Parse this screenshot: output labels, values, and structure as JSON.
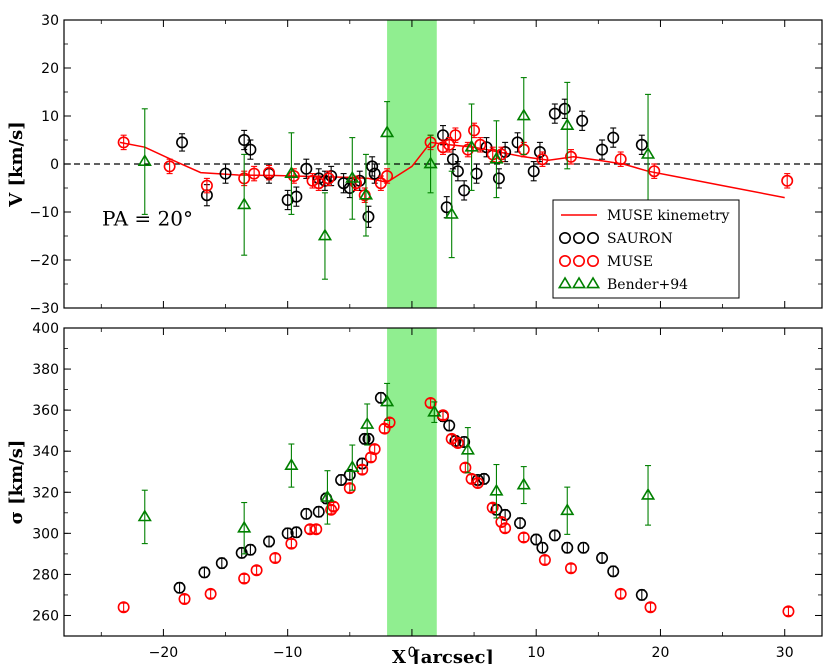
{
  "colors": {
    "sauron": "#000000",
    "muse": "#ff0000",
    "bender": "#008000",
    "model": "#ff0000",
    "band": "#90ee90"
  },
  "chart_data": {
    "type": "scatter",
    "shared_x": {
      "xlabel": "X [arcsec]",
      "xlim": [
        -28,
        33
      ],
      "xticks": [
        -20,
        -10,
        0,
        10,
        20,
        30
      ],
      "xtick_labels": [
        "−20",
        "−10",
        "0",
        "10",
        "20",
        "30"
      ]
    },
    "shaded_band": [
      -2,
      2
    ],
    "legend": {
      "placement": "upper-right of lower half, top panel",
      "entries": [
        {
          "id": "model",
          "label": "MUSE kinemetry",
          "marker": "line"
        },
        {
          "id": "sauron",
          "label": "SAURON",
          "marker": "circle"
        },
        {
          "id": "muse",
          "label": "MUSE",
          "marker": "circle"
        },
        {
          "id": "bender",
          "label": "Bender+94",
          "marker": "triangle"
        }
      ]
    },
    "panels": [
      {
        "id": "velocity",
        "ylabel": "V [km/s]",
        "ylim": [
          -30,
          30
        ],
        "yticks": [
          -30,
          -20,
          -10,
          0,
          10,
          20,
          30
        ],
        "ytick_labels": [
          "−30",
          "−20",
          "−10",
          "0",
          "10",
          "20",
          "30"
        ],
        "annotation": "PA = 20°",
        "zero_line": true,
        "model": [
          [
            -23.5,
            4.5
          ],
          [
            -21.5,
            3.5
          ],
          [
            -19,
            0.5
          ],
          [
            -17,
            -1.8
          ],
          [
            -14,
            -2.3
          ],
          [
            -11,
            -2.4
          ],
          [
            -8,
            -2.6
          ],
          [
            -5,
            -2.8
          ],
          [
            -3.5,
            -3.0
          ],
          [
            -2,
            -3.8
          ],
          [
            0,
            -0.5
          ],
          [
            1.5,
            4.5
          ],
          [
            3,
            4.0
          ],
          [
            5,
            3.5
          ],
          [
            7,
            2.5
          ],
          [
            9,
            1.5
          ],
          [
            11,
            0.8
          ],
          [
            13,
            1.5
          ],
          [
            15,
            0.8
          ],
          [
            17,
            0
          ],
          [
            19,
            -1.5
          ],
          [
            21,
            -2.5
          ],
          [
            25,
            -4.5
          ],
          [
            30,
            -7.0
          ]
        ],
        "series": [
          {
            "id": "sauron",
            "name": "SAURON",
            "points": [
              [
                -18.5,
                4.5,
                1.8
              ],
              [
                -16.5,
                -6.5,
                2.2
              ],
              [
                -15,
                -2.0,
                2.0
              ],
              [
                -13.5,
                5.0,
                2.0
              ],
              [
                -13,
                3.0,
                2.0
              ],
              [
                -11.5,
                -2.0,
                2.0
              ],
              [
                -10,
                -7.5,
                2.0
              ],
              [
                -9.3,
                -6.8,
                2.0
              ],
              [
                -8.5,
                -1.0,
                2.0
              ],
              [
                -7.5,
                -3.0,
                2.0
              ],
              [
                -7.0,
                -3.5,
                2.0
              ],
              [
                -6.5,
                -2.5,
                2.0
              ],
              [
                -5.5,
                -4.0,
                2.0
              ],
              [
                -5,
                -5.0,
                2.0
              ],
              [
                -4.2,
                -3.5,
                2.0
              ],
              [
                -3.5,
                -11.0,
                2.2
              ],
              [
                -3.2,
                -0.5,
                2.0
              ],
              [
                -3.0,
                -2.0,
                2.0
              ],
              [
                2.5,
                6.0,
                2.0
              ],
              [
                2.8,
                -9.0,
                2.2
              ],
              [
                3.3,
                1.0,
                2.0
              ],
              [
                3.7,
                -1.5,
                2.0
              ],
              [
                4.2,
                -5.5,
                2.0
              ],
              [
                5.2,
                -2.0,
                2.0
              ],
              [
                6.0,
                3.5,
                2.0
              ],
              [
                7,
                -3.0,
                2.0
              ],
              [
                7.5,
                2.5,
                2.0
              ],
              [
                8.5,
                4.5,
                2.0
              ],
              [
                9.8,
                -1.5,
                2.0
              ],
              [
                10.3,
                2.5,
                2.0
              ],
              [
                11.5,
                10.5,
                2.0
              ],
              [
                12.3,
                11.5,
                2.0
              ],
              [
                13.7,
                9.0,
                2.0
              ],
              [
                15.3,
                3.0,
                2.0
              ],
              [
                16.2,
                5.5,
                2.0
              ],
              [
                18.5,
                4.0,
                2.0
              ]
            ]
          },
          {
            "id": "muse",
            "name": "MUSE",
            "points": [
              [
                -23.2,
                4.5,
                1.5
              ],
              [
                -19.5,
                -0.5,
                1.5
              ],
              [
                -16.5,
                -4.5,
                1.5
              ],
              [
                -13.5,
                -3.0,
                1.5
              ],
              [
                -12.7,
                -2.0,
                1.5
              ],
              [
                -11.5,
                -1.8,
                1.5
              ],
              [
                -9.5,
                -2.5,
                1.5
              ],
              [
                -8,
                -3.5,
                1.5
              ],
              [
                -7.5,
                -4.0,
                1.5
              ],
              [
                -6.7,
                -3.0,
                1.5
              ],
              [
                -4.5,
                -4.0,
                1.5
              ],
              [
                -3.8,
                -6.5,
                1.5
              ],
              [
                -2.5,
                -4.0,
                1.5
              ],
              [
                -2.0,
                -2.5,
                1.5
              ],
              [
                1.5,
                4.5,
                1.5
              ],
              [
                2.5,
                3.5,
                1.5
              ],
              [
                3.0,
                4.0,
                1.5
              ],
              [
                3.5,
                6.0,
                1.5
              ],
              [
                4.5,
                3.0,
                1.5
              ],
              [
                5.0,
                7.0,
                1.5
              ],
              [
                5.5,
                4.0,
                1.5
              ],
              [
                6.5,
                2.0,
                1.5
              ],
              [
                7.2,
                2.0,
                1.5
              ],
              [
                9.0,
                3.0,
                1.5
              ],
              [
                10.5,
                1.0,
                1.5
              ],
              [
                12.8,
                1.5,
                1.5
              ],
              [
                16.8,
                1.0,
                1.5
              ],
              [
                19.5,
                -1.5,
                1.5
              ],
              [
                30.2,
                -3.5,
                1.5
              ]
            ]
          },
          {
            "id": "bender",
            "name": "Bender+94",
            "points": [
              [
                -21.5,
                0.5,
                11
              ],
              [
                -13.5,
                -8.5,
                10.5
              ],
              [
                -9.7,
                -2.0,
                8.5
              ],
              [
                -7.0,
                -15.0,
                9
              ],
              [
                -4.8,
                -3.0,
                8.5
              ],
              [
                -3.7,
                -6.5,
                8.5
              ],
              [
                -2.0,
                6.5,
                6.5
              ],
              [
                1.5,
                0.0,
                6
              ],
              [
                3.2,
                -10.5,
                9
              ],
              [
                4.8,
                3.5,
                9
              ],
              [
                6.8,
                1.0,
                8
              ],
              [
                9.0,
                10.0,
                8
              ],
              [
                12.5,
                8.0,
                9
              ],
              [
                19.0,
                2.0,
                12.5
              ]
            ]
          }
        ]
      },
      {
        "id": "dispersion",
        "ylabel": "σ [km/s]",
        "ylim": [
          250,
          400
        ],
        "yticks": [
          260,
          280,
          300,
          320,
          340,
          360,
          380,
          400
        ],
        "ytick_labels": [
          "260",
          "280",
          "300",
          "320",
          "340",
          "360",
          "380",
          "400"
        ],
        "series": [
          {
            "id": "sauron",
            "name": "SAURON",
            "points": [
              [
                -18.7,
                273.5,
                2.5
              ],
              [
                -16.7,
                281,
                2.5
              ],
              [
                -15.3,
                285.5,
                2.5
              ],
              [
                -13.7,
                290.5,
                2.5
              ],
              [
                -13.0,
                292,
                2.5
              ],
              [
                -11.5,
                296,
                2.5
              ],
              [
                -10.0,
                300,
                2.5
              ],
              [
                -9.3,
                300.5,
                2.5
              ],
              [
                -8.5,
                309.5,
                2.5
              ],
              [
                -7.5,
                310.5,
                2.5
              ],
              [
                -6.9,
                317,
                2.5
              ],
              [
                -5.7,
                326,
                2.5
              ],
              [
                -5.0,
                328.5,
                2.5
              ],
              [
                -4.0,
                334,
                2.5
              ],
              [
                -3.8,
                346,
                2.5
              ],
              [
                -3.5,
                346,
                2.5
              ],
              [
                -2.5,
                366,
                2.5
              ],
              [
                2.5,
                357,
                2.5
              ],
              [
                3.0,
                352.5,
                2.5
              ],
              [
                3.5,
                345,
                2.5
              ],
              [
                4.2,
                344.5,
                2.5
              ],
              [
                5.3,
                326,
                2.5
              ],
              [
                5.8,
                326.5,
                2.5
              ],
              [
                6.8,
                311.5,
                2.5
              ],
              [
                7.5,
                309,
                2.5
              ],
              [
                8.7,
                305,
                2.5
              ],
              [
                10.0,
                297,
                2.5
              ],
              [
                10.5,
                293,
                2.5
              ],
              [
                11.5,
                299,
                2.5
              ],
              [
                12.5,
                293,
                2.5
              ],
              [
                13.8,
                293,
                2.5
              ],
              [
                15.3,
                288,
                2.5
              ],
              [
                16.2,
                281.5,
                2.5
              ],
              [
                18.5,
                270,
                2.5
              ]
            ]
          },
          {
            "id": "muse",
            "name": "MUSE",
            "points": [
              [
                -23.2,
                264,
                2
              ],
              [
                -18.3,
                268,
                2
              ],
              [
                -16.2,
                270.5,
                2
              ],
              [
                -13.5,
                278,
                2
              ],
              [
                -12.5,
                282,
                2
              ],
              [
                -11.0,
                288,
                2
              ],
              [
                -9.7,
                295,
                2
              ],
              [
                -8.2,
                302,
                2
              ],
              [
                -7.7,
                302,
                2
              ],
              [
                -6.5,
                311.5,
                2
              ],
              [
                -6.3,
                313,
                2
              ],
              [
                -5.0,
                322,
                2
              ],
              [
                -4.0,
                331,
                2
              ],
              [
                -3.3,
                337,
                2
              ],
              [
                -3.0,
                341,
                2
              ],
              [
                -2.2,
                351,
                2
              ],
              [
                -1.8,
                354,
                2
              ],
              [
                1.5,
                363.5,
                2
              ],
              [
                2.5,
                357.5,
                2
              ],
              [
                3.2,
                346,
                2
              ],
              [
                3.7,
                344,
                2
              ],
              [
                4.3,
                332,
                2
              ],
              [
                4.8,
                326.5,
                2
              ],
              [
                5.3,
                324.5,
                2
              ],
              [
                6.5,
                312.5,
                2
              ],
              [
                7.2,
                305.5,
                2
              ],
              [
                7.5,
                302.5,
                2
              ],
              [
                9.0,
                298,
                2
              ],
              [
                10.7,
                287,
                2
              ],
              [
                12.8,
                283,
                2
              ],
              [
                16.8,
                270.5,
                2
              ],
              [
                19.2,
                264,
                2
              ],
              [
                30.3,
                262,
                2
              ]
            ]
          },
          {
            "id": "bender",
            "name": "Bender+94",
            "points": [
              [
                -21.5,
                308,
                13
              ],
              [
                -13.5,
                302.5,
                12.5
              ],
              [
                -9.7,
                333,
                10.5
              ],
              [
                -6.8,
                317.5,
                13
              ],
              [
                -4.8,
                332,
                11
              ],
              [
                -3.6,
                353,
                10
              ],
              [
                -2.0,
                364,
                9
              ],
              [
                1.8,
                359,
                5
              ],
              [
                4.5,
                340.5,
                11
              ],
              [
                6.8,
                320.5,
                13
              ],
              [
                9.0,
                323.5,
                9
              ],
              [
                12.5,
                311,
                11.5
              ],
              [
                19.0,
                318.5,
                14.5
              ]
            ]
          }
        ]
      }
    ]
  }
}
